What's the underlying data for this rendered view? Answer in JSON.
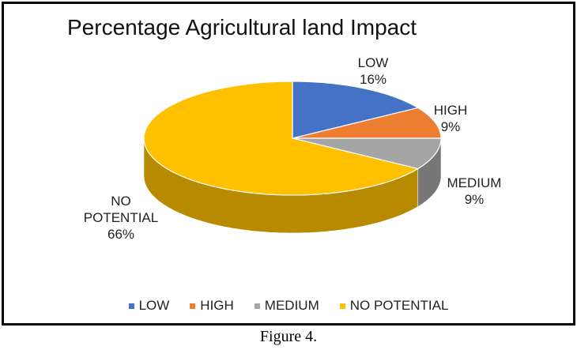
{
  "chart_data": {
    "type": "pie",
    "title": "Percentage Agricultural land Impact",
    "slices": [
      {
        "label": "LOW",
        "value": 16,
        "value_label": "16%",
        "color": "#4472C4"
      },
      {
        "label": "HIGH",
        "value": 9,
        "value_label": "9%",
        "color": "#ED7D31"
      },
      {
        "label": "MEDIUM",
        "value": 9,
        "value_label": "9%",
        "color": "#A5A5A5"
      },
      {
        "label": "NO POTENTIAL",
        "value": 66,
        "value_label": "66%",
        "color": "#FFC000"
      }
    ],
    "legend_position": "bottom",
    "style": "3d"
  },
  "caption": "Figure 4."
}
